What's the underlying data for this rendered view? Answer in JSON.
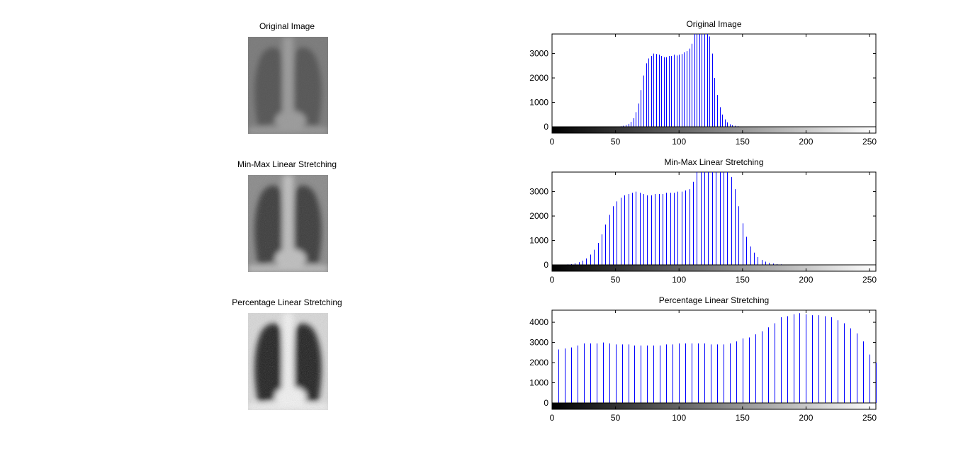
{
  "figure": {
    "panels": [
      {
        "title": "Original Image",
        "contrast": "low"
      },
      {
        "title": "Min-Max Linear Stretching",
        "contrast": "medium"
      },
      {
        "title": "Percentage Linear Stretching",
        "contrast": "high"
      }
    ]
  },
  "colors": {
    "bars": "#0000ff",
    "axes": "#000000",
    "background": "#ffffff"
  },
  "chart_data": [
    {
      "type": "bar",
      "title": "Original Image",
      "xlabel": "",
      "ylabel": "",
      "xlim": [
        0,
        255
      ],
      "ylim": [
        0,
        3800
      ],
      "xticks": [
        0,
        50,
        100,
        150,
        200,
        250
      ],
      "yticks": [
        0,
        1000,
        2000,
        3000
      ],
      "colorbar": "grayscale 0-255",
      "x": [
        50,
        52,
        54,
        56,
        58,
        60,
        62,
        64,
        66,
        68,
        70,
        72,
        74,
        76,
        78,
        80,
        82,
        84,
        86,
        88,
        90,
        92,
        94,
        96,
        98,
        100,
        102,
        104,
        106,
        108,
        110,
        112,
        114,
        116,
        118,
        120,
        122,
        124,
        126,
        128,
        130,
        132,
        134,
        136,
        138,
        140,
        142,
        144,
        146,
        148,
        150
      ],
      "values": [
        5,
        10,
        20,
        40,
        70,
        120,
        200,
        350,
        600,
        950,
        1500,
        2100,
        2600,
        2800,
        2900,
        3000,
        2980,
        2950,
        2900,
        2850,
        2850,
        2900,
        2900,
        2950,
        2920,
        2950,
        2980,
        3050,
        3100,
        3200,
        3400,
        3800,
        3800,
        3800,
        3800,
        3800,
        3800,
        3700,
        3000,
        2000,
        1300,
        800,
        500,
        300,
        180,
        100,
        60,
        40,
        25,
        15,
        8
      ],
      "grid": false
    },
    {
      "type": "bar",
      "title": "Min-Max Linear Stretching",
      "xlabel": "",
      "ylabel": "",
      "xlim": [
        0,
        255
      ],
      "ylim": [
        0,
        3800
      ],
      "xticks": [
        0,
        50,
        100,
        150,
        200,
        250
      ],
      "yticks": [
        0,
        1000,
        2000,
        3000
      ],
      "colorbar": "grayscale 0-255",
      "x": [
        0,
        3,
        6,
        9,
        12,
        15,
        18,
        21,
        24,
        27,
        30,
        33,
        36,
        39,
        42,
        45,
        48,
        51,
        54,
        57,
        60,
        63,
        66,
        69,
        72,
        75,
        78,
        81,
        84,
        87,
        90,
        93,
        96,
        99,
        102,
        105,
        108,
        111,
        114,
        117,
        120,
        123,
        126,
        129,
        132,
        135,
        138,
        141,
        144,
        147,
        150,
        153,
        156,
        159,
        162,
        165,
        168,
        171,
        174,
        177,
        180,
        183,
        186,
        189,
        192,
        195,
        198,
        201,
        204,
        207,
        210
      ],
      "values": [
        5,
        5,
        10,
        15,
        20,
        30,
        60,
        110,
        170,
        260,
        420,
        620,
        900,
        1250,
        1650,
        2050,
        2400,
        2600,
        2750,
        2850,
        2900,
        2950,
        3000,
        2950,
        2900,
        2850,
        2850,
        2900,
        2900,
        2900,
        2950,
        2950,
        2950,
        3000,
        3000,
        3050,
        3100,
        3400,
        3800,
        3800,
        3800,
        3800,
        3800,
        3800,
        3800,
        3800,
        3800,
        3600,
        3100,
        2400,
        1700,
        1150,
        750,
        500,
        320,
        200,
        130,
        80,
        50,
        30,
        20,
        15,
        10,
        6,
        4,
        3,
        2,
        2,
        1,
        1,
        1
      ],
      "grid": false
    },
    {
      "type": "bar",
      "title": "Percentage Linear Stretching",
      "xlabel": "",
      "ylabel": "",
      "xlim": [
        0,
        255
      ],
      "ylim": [
        0,
        4600
      ],
      "xticks": [
        0,
        50,
        100,
        150,
        200,
        250
      ],
      "yticks": [
        0,
        1000,
        2000,
        3000,
        4000
      ],
      "colorbar": "grayscale 0-255",
      "x": [
        5,
        10,
        15,
        20,
        25,
        30,
        35,
        40,
        45,
        50,
        55,
        60,
        65,
        70,
        75,
        80,
        85,
        90,
        95,
        100,
        105,
        110,
        115,
        120,
        125,
        130,
        135,
        140,
        145,
        150,
        155,
        160,
        165,
        170,
        175,
        180,
        185,
        190,
        195,
        200,
        205,
        210,
        215,
        220,
        225,
        230,
        235,
        240,
        245,
        250,
        255
      ],
      "values": [
        2650,
        2700,
        2750,
        2850,
        2950,
        2950,
        2950,
        3000,
        2950,
        2900,
        2900,
        2900,
        2850,
        2850,
        2850,
        2850,
        2850,
        2900,
        2900,
        2950,
        2950,
        2950,
        2950,
        2950,
        2900,
        2900,
        2900,
        2950,
        3050,
        3200,
        3250,
        3400,
        3550,
        3750,
        3950,
        4250,
        4300,
        4400,
        4450,
        4400,
        4350,
        4350,
        4300,
        4250,
        4100,
        3950,
        3700,
        3450,
        3050,
        2400,
        2000
      ],
      "grid": false
    }
  ]
}
